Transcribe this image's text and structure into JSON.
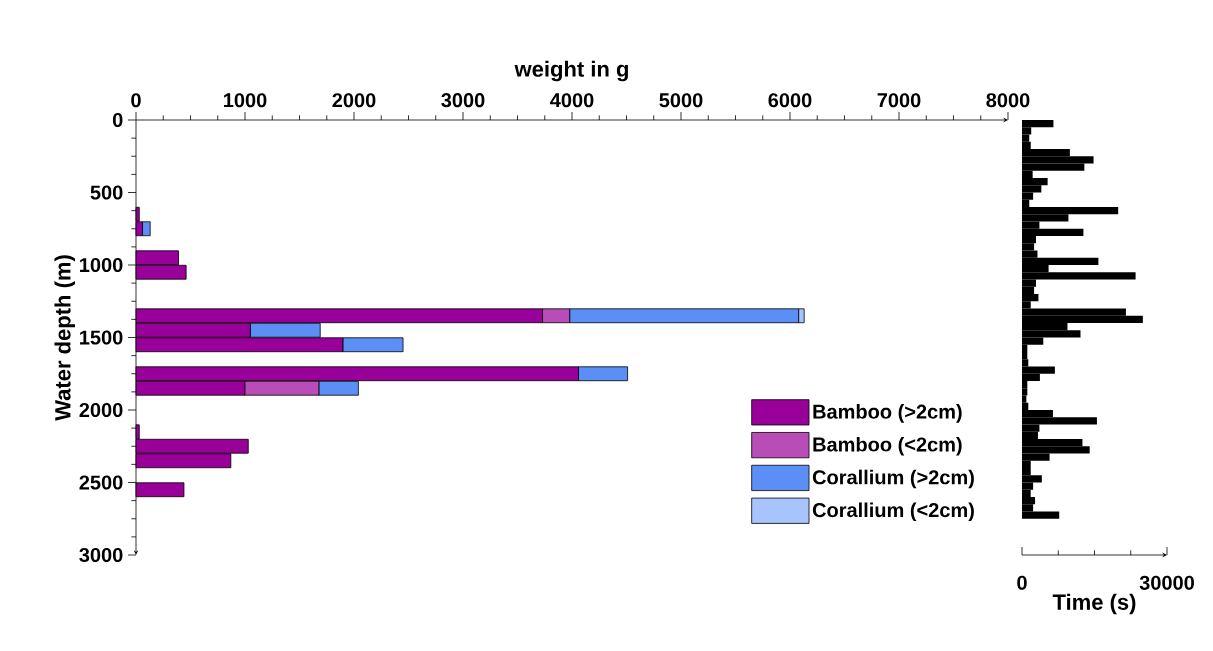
{
  "chart_data": [
    {
      "type": "bar",
      "orientation": "horizontal",
      "stacked": true,
      "xlabel": "weight in g",
      "ylabel": "Water depth (m)",
      "x": [
        650,
        750,
        950,
        1050,
        1350,
        1450,
        1550,
        1750,
        1850,
        2150,
        2250,
        2350,
        2550
      ],
      "series": [
        {
          "name": "Bamboo (>2cm)",
          "color": "#990099",
          "values": [
            30,
            60,
            390,
            460,
            3730,
            1050,
            1900,
            4060,
            1000,
            30,
            1030,
            870,
            440
          ]
        },
        {
          "name": "Bamboo (<2cm)",
          "color": "#b84db8",
          "values": [
            null,
            null,
            null,
            null,
            250,
            null,
            null,
            null,
            680,
            null,
            null,
            null,
            null
          ]
        },
        {
          "name": "Corallium (>2cm)",
          "color": "#5b8ff5",
          "values": [
            null,
            70,
            null,
            null,
            2100,
            640,
            550,
            450,
            360,
            null,
            null,
            null,
            null
          ]
        },
        {
          "name": "Corallium (<2cm)",
          "color": "#a8c4ff",
          "values": [
            null,
            null,
            null,
            null,
            50,
            null,
            null,
            null,
            null,
            null,
            null,
            null,
            null
          ]
        }
      ],
      "xlim": [
        0,
        8000
      ],
      "xticks": [
        0,
        {
          "value": 250,
          "label": null
        },
        {
          "value": 500,
          "label": null
        },
        {
          "value": 750,
          "label": null
        },
        1000,
        {
          "value": 1250,
          "label": null
        },
        {
          "value": 1500,
          "label": null
        },
        {
          "value": 1750,
          "label": null
        },
        2000,
        {
          "value": 2250,
          "label": null
        },
        {
          "value": 2500,
          "label": null
        },
        {
          "value": 2750,
          "label": null
        },
        3000,
        {
          "value": 3250,
          "label": null
        },
        {
          "value": 3500,
          "label": null
        },
        {
          "value": 3750,
          "label": null
        },
        4000,
        {
          "value": 4250,
          "label": null
        },
        {
          "value": 4500,
          "label": null
        },
        {
          "value": 4750,
          "label": null
        },
        5000,
        {
          "value": 5250,
          "label": null
        },
        {
          "value": 5500,
          "label": null
        },
        {
          "value": 5750,
          "label": null
        },
        6000,
        {
          "value": 6250,
          "label": null
        },
        {
          "value": 6500,
          "label": null
        },
        {
          "value": 6750,
          "label": null
        },
        7000,
        {
          "value": 7250,
          "label": null
        },
        {
          "value": 7500,
          "label": null
        },
        {
          "value": 7750,
          "label": null
        },
        8000
      ],
      "ylim": [
        3000,
        0
      ],
      "yticks": [
        0,
        {
          "value": 125,
          "label": null
        },
        {
          "value": 250,
          "label": null
        },
        {
          "value": 375,
          "label": null
        },
        500,
        {
          "value": 625,
          "label": null
        },
        {
          "value": 750,
          "label": null
        },
        {
          "value": 875,
          "label": null
        },
        1000,
        {
          "value": 1125,
          "label": null
        },
        {
          "value": 1250,
          "label": null
        },
        {
          "value": 1375,
          "label": null
        },
        1500,
        {
          "value": 1625,
          "label": null
        },
        {
          "value": 1750,
          "label": null
        },
        {
          "value": 1875,
          "label": null
        },
        2000,
        {
          "value": 2125,
          "label": null
        },
        {
          "value": 2250,
          "label": null
        },
        {
          "value": 2375,
          "label": null
        },
        2500,
        {
          "value": 2625,
          "label": null
        },
        {
          "value": 2750,
          "label": null
        },
        {
          "value": 2875,
          "label": null
        },
        3000
      ],
      "legend": "bottom right"
    },
    {
      "type": "histogram",
      "orientation": "horizontal",
      "xlabel": "Time (s)",
      "color": "#000000",
      "bins": [
        0,
        50,
        100,
        150,
        200,
        250,
        300,
        350,
        400,
        450,
        500,
        550,
        600,
        650,
        700,
        750,
        800,
        850,
        900,
        950,
        1000,
        1050,
        1100,
        1150,
        1200,
        1250,
        1300,
        1350,
        1400,
        1450,
        1500,
        1550,
        1600,
        1650,
        1700,
        1750,
        1800,
        1850,
        1900,
        1950,
        2000,
        2050,
        2100,
        2150,
        2200,
        2250,
        2300,
        2350,
        2400,
        2450,
        2500,
        2550,
        2600,
        2650,
        2700,
        2750
      ],
      "values": [
        6500,
        1900,
        1500,
        1800,
        9900,
        14800,
        12900,
        2200,
        5300,
        4000,
        2300,
        1500,
        19900,
        9600,
        3600,
        12700,
        2900,
        2500,
        3200,
        15800,
        5500,
        23500,
        2900,
        2500,
        3400,
        1800,
        21500,
        25000,
        9400,
        12100,
        4400,
        1100,
        1100,
        1300,
        6800,
        3700,
        1100,
        1100,
        900,
        1300,
        6400,
        15500,
        3600,
        3300,
        12500,
        14000,
        5700,
        1800,
        1800,
        4100,
        2300,
        1800,
        2700,
        2300,
        7700
      ],
      "xlim": [
        0,
        30000
      ],
      "xticks": [
        0,
        {
          "value": 7500,
          "label": null
        },
        {
          "value": 15000,
          "label": null
        },
        {
          "value": 22500,
          "label": null
        },
        30000
      ],
      "ylim": [
        3000,
        0
      ],
      "tick_labels": "x"
    }
  ]
}
